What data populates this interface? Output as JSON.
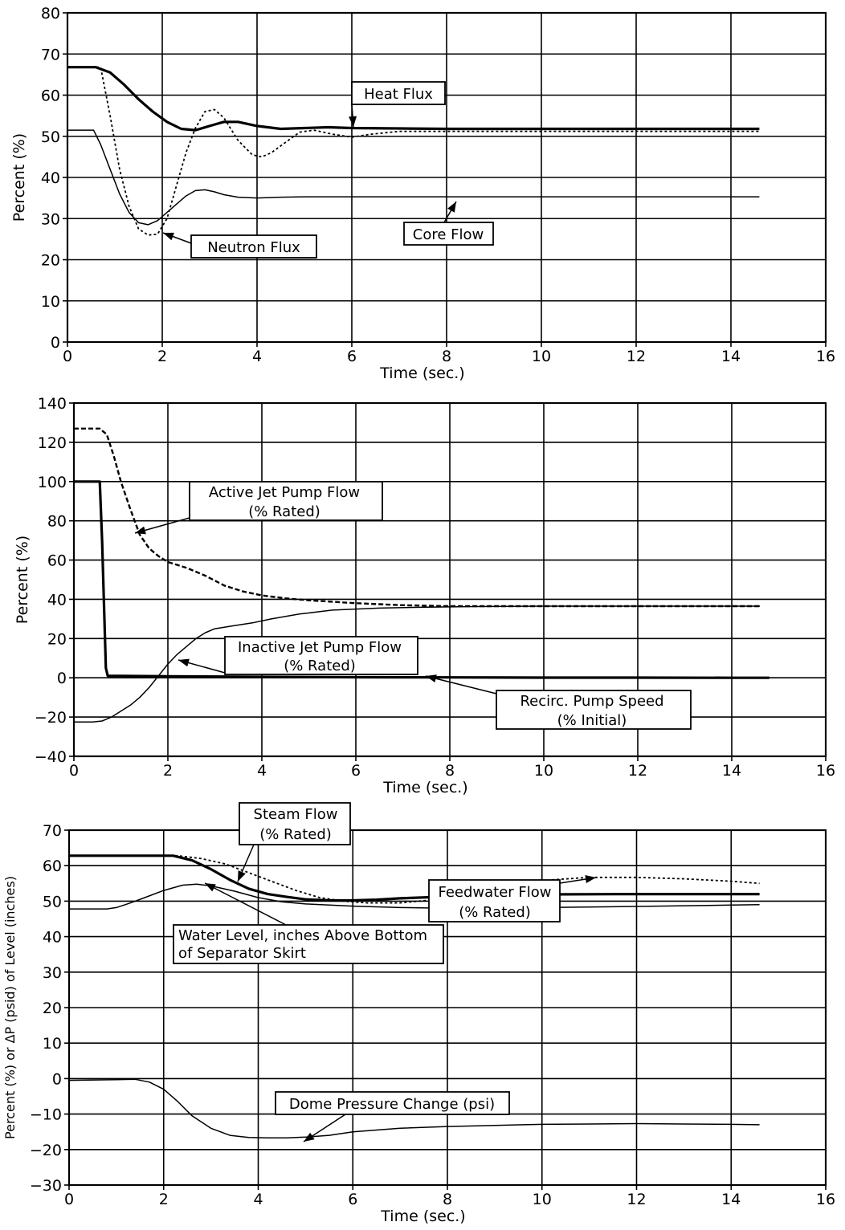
{
  "chart_data": [
    {
      "type": "line",
      "xlabel": "Time  (sec.)",
      "ylabel": "Percent  (%)",
      "xlim": [
        0,
        16
      ],
      "ylim": [
        0,
        80
      ],
      "xticks": [
        "0",
        "2",
        "4",
        "6",
        "8",
        "10",
        "12",
        "14",
        "16"
      ],
      "yticks": [
        "0",
        "10",
        "20",
        "30",
        "40",
        "50",
        "60",
        "70",
        "80"
      ],
      "grid": true,
      "series": [
        {
          "name": "Heat Flux",
          "style": "thick",
          "x": [
            0,
            0.6,
            0.9,
            1.2,
            1.5,
            1.8,
            2.1,
            2.4,
            2.7,
            3.0,
            3.3,
            3.6,
            4.0,
            4.5,
            5.0,
            5.5,
            6.0,
            7,
            8,
            10,
            12,
            14,
            14.6
          ],
          "y": [
            66.8,
            66.8,
            65.5,
            62.5,
            59,
            56,
            53.5,
            51.8,
            51.5,
            52.5,
            53.5,
            53.5,
            52.5,
            51.8,
            52,
            52.2,
            52,
            51.9,
            51.8,
            51.8,
            51.8,
            51.8,
            51.8
          ]
        },
        {
          "name": "Neutron Flux",
          "style": "dotted",
          "x": [
            0,
            0.7,
            0.9,
            1.1,
            1.3,
            1.5,
            1.7,
            1.9,
            2.1,
            2.3,
            2.5,
            2.7,
            2.9,
            3.1,
            3.3,
            3.6,
            3.9,
            4.1,
            4.3,
            4.6,
            4.9,
            5.2,
            5.6,
            6.0,
            6.4,
            7,
            8,
            10,
            12,
            14,
            14.6
          ],
          "y": [
            66.8,
            66.8,
            55,
            42,
            33,
            27.5,
            26,
            26.2,
            30,
            38,
            46,
            52,
            56,
            56.5,
            54.5,
            49,
            45.5,
            45,
            46,
            48.5,
            51,
            51.5,
            50.5,
            49.8,
            50.5,
            51.2,
            51.2,
            51.2,
            51.2,
            51.2,
            51.2
          ]
        },
        {
          "name": "Core Flow",
          "style": "thin",
          "x": [
            0,
            0.55,
            0.7,
            0.9,
            1.1,
            1.3,
            1.5,
            1.7,
            1.9,
            2.1,
            2.3,
            2.5,
            2.7,
            2.9,
            3.1,
            3.3,
            3.6,
            4.0,
            4.5,
            5,
            6,
            8,
            10,
            12,
            14,
            14.6
          ],
          "y": [
            51.5,
            51.5,
            48,
            42,
            36,
            31.5,
            29,
            28.5,
            29.5,
            31.5,
            33.5,
            35.5,
            36.8,
            37,
            36.5,
            35.8,
            35.2,
            35,
            35.2,
            35.3,
            35.3,
            35.3,
            35.3,
            35.3,
            35.3,
            35.3
          ]
        }
      ],
      "annotations": [
        "Heat Flux",
        "Neutron Flux",
        "Core Flow"
      ]
    },
    {
      "type": "line",
      "xlabel": "Time  (sec.)",
      "ylabel": "Percent  (%)",
      "xlim": [
        0,
        16
      ],
      "ylim": [
        -40,
        140
      ],
      "xticks": [
        "0",
        "2",
        "4",
        "6",
        "8",
        "10",
        "12",
        "14",
        "16"
      ],
      "yticks": [
        "-40",
        "-20",
        "0",
        "20",
        "40",
        "60",
        "80",
        "100",
        "120",
        "140"
      ],
      "grid": true,
      "series": [
        {
          "name": "Active Jet Pump Flow (% Rated)",
          "style": "dashed",
          "x": [
            0,
            0.55,
            0.7,
            0.85,
            1.0,
            1.2,
            1.4,
            1.6,
            1.8,
            2.0,
            2.4,
            2.8,
            3.2,
            3.6,
            4.0,
            4.5,
            5,
            6,
            7,
            8,
            10,
            12,
            14,
            14.6
          ],
          "y": [
            127,
            127,
            124,
            113,
            100,
            86,
            73,
            66,
            62,
            59,
            56,
            52,
            47,
            44,
            42,
            40.5,
            39.5,
            38,
            37,
            36.5,
            36.5,
            36.5,
            36.5,
            36.5
          ]
        },
        {
          "name": "Inactive Jet Pump Flow (% Rated)",
          "style": "thin",
          "x": [
            0,
            0.4,
            0.6,
            0.8,
            1.0,
            1.2,
            1.4,
            1.6,
            1.8,
            2.0,
            2.2,
            2.4,
            2.6,
            2.8,
            3.0,
            3.4,
            3.8,
            4.2,
            4.8,
            5.5,
            6.5,
            7.5,
            8.5,
            10,
            12,
            14,
            14.6
          ],
          "y": [
            -22.5,
            -22.5,
            -22,
            -20,
            -17,
            -14,
            -10,
            -5,
            1,
            7,
            12,
            16,
            20,
            23,
            25,
            26.5,
            28,
            30,
            32.5,
            34.5,
            35.5,
            36,
            36.3,
            36.5,
            36.5,
            36.5,
            36.5
          ]
        },
        {
          "name": "Recirc. Pump Speed (% Initial)",
          "style": "thick",
          "x": [
            0,
            0.55,
            0.6,
            0.68,
            0.72,
            1,
            2,
            4,
            6,
            8,
            10,
            12,
            14,
            14.8
          ],
          "y": [
            100,
            100,
            70,
            5,
            1,
            1,
            0.8,
            0.5,
            0.3,
            0.2,
            0.1,
            0.1,
            0,
            0
          ]
        }
      ],
      "annotations": [
        "Active Jet Pump Flow",
        "(% Rated)",
        "Inactive Jet Pump Flow",
        "(% Rated)",
        "Recirc. Pump Speed",
        "(% Initial)"
      ]
    },
    {
      "type": "line",
      "xlabel": "Time  (sec.)",
      "ylabel": "Percent  (%)  or  ΔP  (psid)  of  Level  (inches)",
      "xlim": [
        0,
        16
      ],
      "ylim": [
        -30,
        70
      ],
      "xticks": [
        "0",
        "2",
        "4",
        "6",
        "8",
        "10",
        "12",
        "14",
        "16"
      ],
      "yticks": [
        "-30",
        "-20",
        "-10",
        "0",
        "10",
        "20",
        "30",
        "40",
        "50",
        "60",
        "70"
      ],
      "grid": true,
      "series": [
        {
          "name": "Steam Flow (% Rated)",
          "style": "thick",
          "x": [
            0,
            2.2,
            2.6,
            3.0,
            3.4,
            3.8,
            4.2,
            4.6,
            5.0,
            5.5,
            6.0,
            6.5,
            7,
            8,
            9,
            10,
            12,
            14,
            14.6
          ],
          "y": [
            62.8,
            62.8,
            61.5,
            59,
            56,
            53.5,
            52,
            51.2,
            50.5,
            50.2,
            50.2,
            50.4,
            50.8,
            51.3,
            51.7,
            51.9,
            52,
            52,
            52
          ]
        },
        {
          "name": "Feedwater Flow (% Rated)",
          "style": "dotted",
          "x": [
            0,
            2.3,
            2.8,
            3.3,
            3.8,
            4.3,
            4.8,
            5.3,
            5.8,
            6.3,
            7.0,
            7.8,
            8.6,
            9.4,
            10.2,
            11,
            12,
            13,
            14,
            14.6
          ],
          "y": [
            62.8,
            62.8,
            62,
            60.5,
            58,
            55.5,
            53,
            51,
            50,
            49.5,
            49.5,
            50.5,
            52.5,
            54.5,
            56,
            56.7,
            56.7,
            56.3,
            55.6,
            55
          ]
        },
        {
          "name": "Water Level, inches Above Bottom of Separator Skirt",
          "style": "thin",
          "x": [
            0,
            0.8,
            1.0,
            1.3,
            1.6,
            2.0,
            2.4,
            2.7,
            3.0,
            3.5,
            4.0,
            4.5,
            5,
            6,
            7,
            8,
            9,
            10,
            12,
            14,
            14.6
          ],
          "y": [
            47.8,
            47.8,
            48.2,
            49.5,
            51,
            53,
            54.5,
            54.8,
            54.3,
            52.8,
            51,
            49.8,
            49.2,
            48.6,
            48.2,
            48,
            48,
            48.2,
            48.5,
            48.9,
            49
          ]
        },
        {
          "name": "Dome Pressure Change (psi)",
          "style": "thin",
          "x": [
            0,
            1.0,
            1.4,
            1.7,
            2.0,
            2.3,
            2.6,
            3.0,
            3.4,
            3.8,
            4.2,
            4.6,
            5.0,
            5.5,
            6,
            7,
            8,
            9,
            10,
            11,
            12,
            13,
            14,
            14.6
          ],
          "y": [
            -0.5,
            -0.3,
            -0.2,
            -1,
            -3,
            -6.5,
            -10.5,
            -14,
            -16,
            -16.6,
            -16.7,
            -16.7,
            -16.5,
            -16,
            -15,
            -14,
            -13.5,
            -13.2,
            -12.9,
            -12.8,
            -12.7,
            -12.8,
            -12.9,
            -13
          ]
        }
      ],
      "annotations": [
        "Steam Flow",
        "(% Rated)",
        "Feedwater Flow",
        "(% Rated)",
        "Water Level, inches Above Bottom",
        "of Separator Skirt",
        "Dome Pressure Change (psi)"
      ]
    }
  ]
}
